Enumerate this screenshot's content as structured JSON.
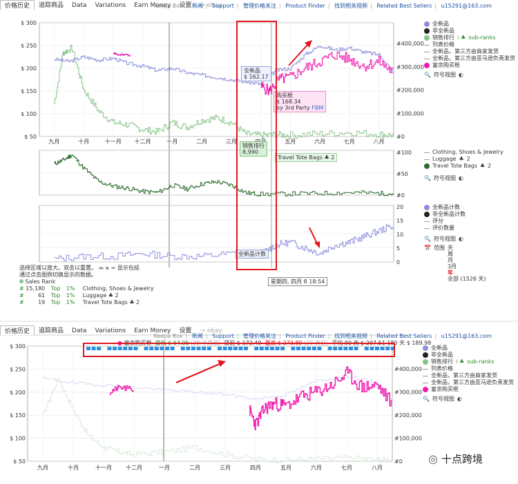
{
  "tabs": [
    "价格历史",
    "追踪商品",
    "Data",
    "Variations",
    "Earn Money",
    "设置"
  ],
  "ebay": "ebay",
  "top_links": [
    "Keepa Box",
    "新闻",
    "Support",
    "管理价格关注",
    "Product Finder",
    "找到相关视频",
    "Related Best Sellers",
    "u15291@163.com"
  ],
  "months": [
    "九月",
    "十月",
    "十一月",
    "十二月",
    "一月",
    "二月",
    "三月",
    "四月",
    "五月",
    "六月",
    "七月",
    "八月"
  ],
  "colors": {
    "new": "#8c8fdc",
    "amazon": "#f01aae",
    "sales_rank": "#88c48a",
    "cat": "#2d6a2d",
    "red": "#e0141e"
  },
  "top_chart": {
    "y_left": [
      "$ 300",
      "$ 250",
      "$ 200",
      "$ 150",
      "$ 100",
      "$ 50"
    ],
    "y_right": [
      "#400,000",
      "#300,000",
      "#200,000",
      "#100,000",
      "#0"
    ],
    "legend": [
      "全新品",
      "非全新品",
      "销售排行",
      "sub-ranks",
      "列表价格",
      "全新品，第三方由商家发货",
      "全新品，第三方由亚马逊负责发货",
      "富余购买框",
      "符号视图"
    ],
    "tooltip1": [
      "全新品",
      "$ 162.17"
    ],
    "tooltip2": [
      "购买框",
      "$ 168.34",
      "by 3rd Party",
      "FBM"
    ],
    "tooltip3": [
      "销售排行",
      "8,990"
    ]
  },
  "mid_chart": {
    "y_right": [
      "#100",
      "#50",
      "#0"
    ],
    "legend": [
      "Clothing, Shoes & Jewelry",
      "Luggage",
      "2",
      "Travel Tote Bags",
      "2",
      "符号视图"
    ],
    "label": "Travel Tote Bags",
    "label_count": "2"
  },
  "low_chart": {
    "y_right": [
      "20",
      "15",
      "10",
      "5",
      "0"
    ],
    "legend": [
      "全新品计数",
      "非全新品计数",
      "评分",
      "评价数量",
      "符号视图"
    ],
    "range": [
      "范围",
      "天",
      "周",
      "月",
      "3月",
      "年",
      "全部 (1526 天)"
    ],
    "tooltip": "全新品计数",
    "date_label": "星期四, 四月 8 18:54"
  },
  "notes": [
    "选择区域以放大。双击以重置。",
    "= 显示包括",
    "通过点击图例切换显示的数据。",
    "Sales Rank"
  ],
  "sales_rank_rows": [
    {
      "rank": "15,180",
      "top": "Top",
      "pct": "1%",
      "cat": "Clothing, Shoes & Jewelry",
      "count": ""
    },
    {
      "rank": "61",
      "top": "Top",
      "pct": "1%",
      "cat": "Luggage",
      "count": "2"
    },
    {
      "rank": "19",
      "top": "Top",
      "pct": "1%",
      "cat": "Travel Tote Bags",
      "count": "2"
    }
  ],
  "second": {
    "header": [
      "富余购买框",
      "最低 $ 64.95",
      "(39 个月前)",
      "目前 $ 172.49",
      "最高 $ 273.89",
      "(27 天前)",
      "平均 90 天 $ 207.51",
      "180 天 $ 189.98"
    ],
    "y_left": [
      "$ 300",
      "$ 250",
      "$ 200",
      "$ 150",
      "$ 100",
      "$ 50"
    ],
    "y_right": [
      "#400,000",
      "#300,000",
      "#200,000",
      "#100,000",
      "#0"
    ],
    "legend": [
      "全新品",
      "非全新品",
      "销售排行",
      "sub-ranks",
      "列表价格",
      "全新品，第三方由商家发货",
      "全新品，第三方由亚马逊负责发货",
      "富余购买框",
      "符号视图"
    ]
  },
  "watermark": "十点跨境",
  "chart_data": [
    {
      "type": "line",
      "title": "",
      "x_categories": [
        "九月",
        "十月",
        "十一月",
        "十二月",
        "一月",
        "二月",
        "三月",
        "四月",
        "五月",
        "六月",
        "七月",
        "八月"
      ],
      "ylim": [
        50,
        300
      ],
      "y2lim": [
        0,
        400000
      ],
      "series": [
        {
          "name": "全新品",
          "x": [
            0,
            0.5,
            1,
            1.5,
            2,
            2.5,
            3,
            3.5,
            4,
            4.5,
            5,
            5.5,
            6,
            6.5,
            7,
            7.5,
            8,
            8.5,
            9,
            9.5,
            10,
            10.5,
            11,
            11.5
          ],
          "values": [
            220,
            215,
            225,
            218,
            222,
            210,
            205,
            195,
            200,
            190,
            185,
            180,
            175,
            170,
            165,
            195,
            200,
            230,
            250,
            240,
            245,
            235,
            230,
            190
          ]
        },
        {
          "name": "富余购买框",
          "x": [
            2,
            2.2,
            2.6,
            7,
            7.3,
            7.6,
            8,
            8.5,
            9,
            9.5,
            10,
            10.5,
            11,
            11.5
          ],
          "values": [
            235,
            228,
            230,
            160,
            150,
            175,
            180,
            200,
            215,
            230,
            220,
            205,
            215,
            190
          ]
        },
        {
          "name": "销售排行",
          "x": [
            0,
            0.3,
            0.6,
            1,
            1.5,
            2,
            2.5,
            3,
            3.5,
            4,
            4.5,
            5,
            5.5,
            6,
            6.5,
            7,
            7.5,
            8,
            9,
            10,
            11,
            11.5
          ],
          "values": [
            140000,
            360000,
            380000,
            200000,
            110000,
            60000,
            50000,
            30000,
            20000,
            60000,
            40000,
            70000,
            80000,
            60000,
            10000,
            5000,
            8000,
            6000,
            12000,
            18000,
            10000,
            6000
          ]
        }
      ]
    },
    {
      "type": "line",
      "title": "",
      "x_categories": [
        "九月",
        "十月",
        "十一月",
        "十二月",
        "一月",
        "二月",
        "三月",
        "四月",
        "五月",
        "六月",
        "七月",
        "八月"
      ],
      "ylim": [
        0,
        100
      ],
      "series": [
        {
          "name": "Travel Tote Bags",
          "x": [
            0,
            0.3,
            0.6,
            1,
            1.5,
            2,
            2.5,
            3,
            3.5,
            4,
            4.5,
            5,
            5.5,
            6,
            6.5,
            7,
            8,
            9,
            10,
            11,
            11.5
          ],
          "values": [
            70,
            78,
            90,
            60,
            30,
            20,
            15,
            8,
            6,
            22,
            14,
            25,
            30,
            22,
            5,
            2,
            3,
            4,
            6,
            4,
            3
          ]
        }
      ]
    },
    {
      "type": "line",
      "title": "",
      "x_categories": [
        "九月",
        "十月",
        "十一月",
        "十二月",
        "一月",
        "二月",
        "三月",
        "四月",
        "五月",
        "六月",
        "七月",
        "八月"
      ],
      "ylim": [
        0,
        20
      ],
      "series": [
        {
          "name": "全新品计数",
          "x": [
            0,
            1,
            2,
            3,
            4,
            5,
            6,
            7,
            7.5,
            8,
            8.5,
            9,
            9.5,
            10,
            10.5,
            11,
            11.5
          ],
          "values": [
            1,
            2,
            2,
            3,
            2,
            2,
            3,
            3,
            6,
            7,
            5,
            3,
            6,
            7,
            9,
            11,
            13
          ]
        }
      ]
    },
    {
      "type": "line",
      "title": "",
      "x_categories": [
        "九月",
        "十月",
        "十一月",
        "十二月",
        "一月",
        "二月",
        "三月",
        "四月",
        "五月",
        "六月",
        "七月",
        "八月"
      ],
      "ylim": [
        50,
        300
      ],
      "series": [
        {
          "name": "富余购买框",
          "x": [
            2.2,
            2.5,
            3,
            6.8,
            7,
            7.3,
            7.6,
            8,
            8.5,
            9,
            9.5,
            10,
            10.5,
            11,
            11.5
          ],
          "values": [
            200,
            210,
            205,
            160,
            130,
            165,
            175,
            170,
            190,
            200,
            215,
            240,
            210,
            215,
            175
          ]
        },
        {
          "name": "全新品",
          "x": [
            0,
            1,
            2,
            3,
            4,
            5,
            6,
            7,
            8,
            9,
            10,
            11,
            11.5
          ],
          "values": [
            230,
            220,
            215,
            210,
            205,
            200,
            195,
            185,
            195,
            225,
            235,
            220,
            180
          ]
        },
        {
          "name": "销售排行",
          "x": [
            0,
            0.5,
            1,
            1.5,
            2,
            2.5,
            3,
            4,
            5,
            6,
            7,
            8,
            9,
            10,
            11,
            11.5
          ],
          "values": [
            200000,
            360000,
            220000,
            110000,
            60000,
            40000,
            30000,
            40000,
            60000,
            30000,
            8000,
            5000,
            10000,
            15000,
            8000,
            6000
          ]
        }
      ]
    }
  ]
}
